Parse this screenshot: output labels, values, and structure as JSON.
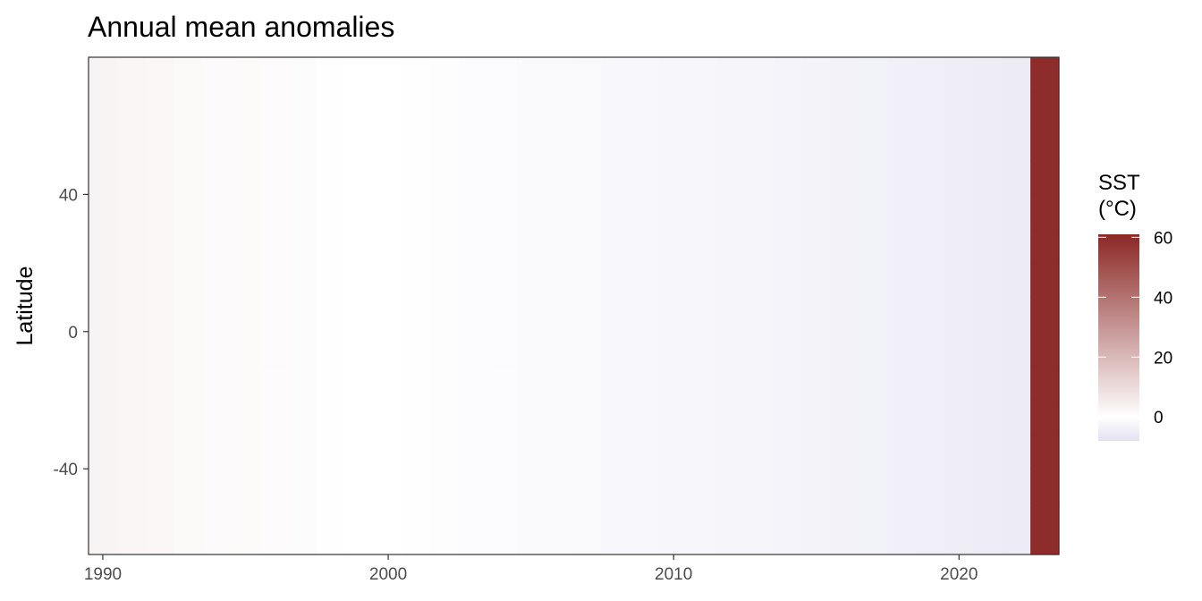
{
  "chart_data": {
    "type": "heatmap",
    "title": "Annual mean anomalies",
    "xlabel": "",
    "ylabel": "Latitude",
    "x": [
      1990,
      1991,
      1992,
      1993,
      1994,
      1995,
      1996,
      1997,
      1998,
      1999,
      2000,
      2001,
      2002,
      2003,
      2004,
      2005,
      2006,
      2007,
      2008,
      2009,
      2010,
      2011,
      2012,
      2013,
      2014,
      2015,
      2016,
      2017,
      2018,
      2019,
      2020,
      2021,
      2022,
      2023
    ],
    "xlim": [
      1989.5,
      2023.5
    ],
    "ylim": [
      -65,
      80
    ],
    "x_ticks": [
      1990,
      2000,
      2010,
      2020
    ],
    "y_ticks": [
      -40,
      0,
      40
    ],
    "latitude_bands": [
      -55,
      -45,
      -35,
      -25,
      -15,
      -5,
      5,
      15,
      25,
      35,
      45,
      55,
      65,
      75
    ],
    "values": [
      3,
      2.5,
      2.2,
      1.6,
      1.5,
      1.3,
      1.2,
      0.8,
      0.2,
      0,
      -0.1,
      -0.3,
      -0.5,
      -0.8,
      -1,
      -1.3,
      -1.5,
      -1.7,
      -1.9,
      -2,
      -2.2,
      -2.4,
      -2.6,
      -2.8,
      -3,
      -3.2,
      -3.4,
      -3.6,
      -3.9,
      -4.2,
      -4.6,
      -5,
      -5.2,
      60
    ],
    "legend": {
      "title_line1": "SST",
      "title_line2": "(°C)",
      "ticks": [
        0,
        20,
        40,
        60
      ],
      "range": [
        -8,
        61
      ],
      "placement": "right"
    },
    "grid": false,
    "colors": {
      "low": "#e3e1f1",
      "mid": "#ffffff",
      "high": "#8b2826",
      "panel_border": "#333333"
    }
  }
}
